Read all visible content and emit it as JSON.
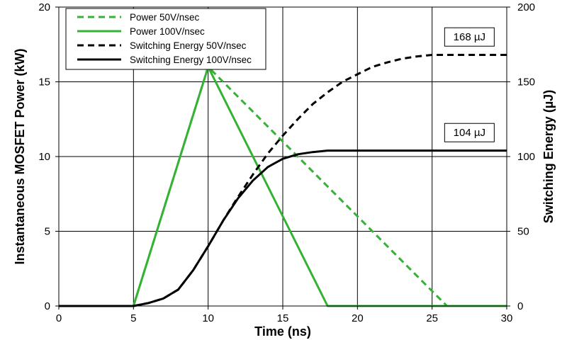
{
  "chart_data": {
    "type": "line",
    "title": "",
    "xlabel": "Time (ns)",
    "ylabel": "Instantaneous MOSFET Power (kW)",
    "y2label": "Switching Energy (µJ)",
    "xlim": [
      0,
      30
    ],
    "ylim": [
      0,
      20
    ],
    "y2lim": [
      0,
      200
    ],
    "x_ticks": [
      0,
      5,
      10,
      15,
      20,
      25,
      30
    ],
    "y_ticks": [
      0,
      5,
      10,
      15,
      20
    ],
    "y2_ticks": [
      0,
      50,
      100,
      150,
      200
    ],
    "grid": true,
    "legend_position": "top-left",
    "series": [
      {
        "name": "Power 50V/nsec",
        "axis": "left",
        "color": "#33b233",
        "dash": "dashed",
        "x": [
          0,
          5,
          10,
          26,
          30
        ],
        "y": [
          0,
          0,
          16,
          0,
          0
        ]
      },
      {
        "name": "Power 100V/nsec",
        "axis": "left",
        "color": "#33b233",
        "dash": "solid",
        "x": [
          0,
          5,
          10,
          18,
          30
        ],
        "y": [
          0,
          0,
          16,
          0,
          0
        ]
      },
      {
        "name": "Switching Energy 50V/nsec",
        "axis": "right",
        "color": "#000000",
        "dash": "dashed",
        "x": [
          0,
          5,
          6,
          7,
          8,
          9,
          10,
          11,
          12,
          13,
          14,
          15,
          16,
          17,
          18,
          19,
          20,
          21,
          22,
          23,
          24,
          25,
          26,
          30
        ],
        "y": [
          0,
          0,
          2,
          5,
          11,
          24,
          40,
          57,
          73,
          88,
          102,
          114,
          125,
          135,
          143,
          150,
          155,
          160,
          163,
          165.5,
          167,
          168,
          168,
          168
        ]
      },
      {
        "name": "Switching Energy 100V/nsec",
        "axis": "right",
        "color": "#000000",
        "dash": "solid",
        "x": [
          0,
          5,
          6,
          7,
          8,
          9,
          10,
          11,
          12,
          13,
          14,
          15,
          16,
          17,
          18,
          30
        ],
        "y": [
          0,
          0,
          2,
          5,
          11,
          24,
          40,
          57,
          72,
          84,
          93,
          98.5,
          101.5,
          103,
          104,
          104
        ]
      }
    ],
    "annotations": [
      {
        "text": "168 µJ",
        "x": 27.5,
        "y2": 180
      },
      {
        "text": "104 µJ",
        "x": 27.5,
        "y2": 116
      }
    ]
  }
}
